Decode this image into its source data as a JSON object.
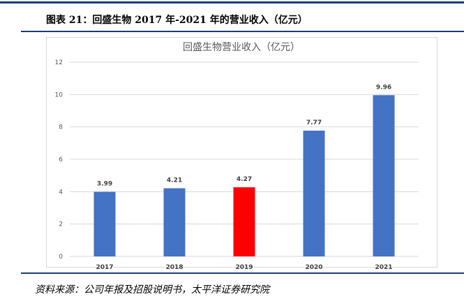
{
  "figure_caption": "图表 21：回盛生物 2017 年-2021 年的营业收入（亿元）",
  "source_note": "资料来源：公司年报及招股说明书，太平洋证券研究院",
  "colors": {
    "bar": "#4472c4",
    "highlight": "#ff0000",
    "rule": "#1f3a7a",
    "grid": "#d9d9d9"
  },
  "chart_data": {
    "type": "bar",
    "title": "回盛生物营业收入（亿元）",
    "categories": [
      "2017",
      "2018",
      "2019",
      "2020",
      "2021"
    ],
    "values": [
      3.99,
      4.21,
      4.27,
      7.77,
      9.96
    ],
    "value_labels": [
      "3.99",
      "4.21",
      "4.27",
      "7.77",
      "9.96"
    ],
    "highlight_category": "2019",
    "ylim": [
      0,
      12
    ],
    "yticks": [
      0,
      2,
      4,
      6,
      8,
      10,
      12
    ],
    "grid": true,
    "legend": false
  }
}
